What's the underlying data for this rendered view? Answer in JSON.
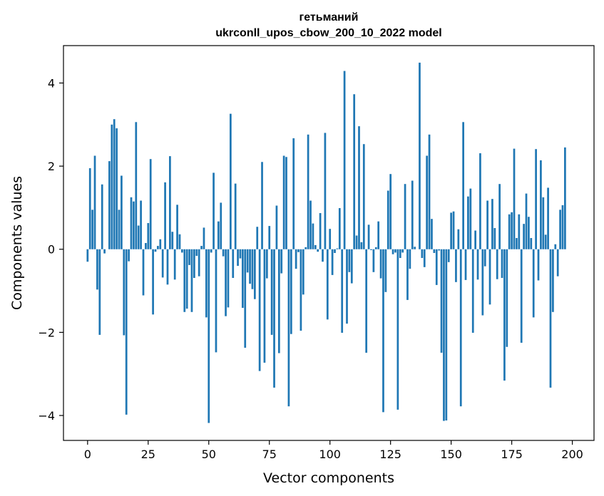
{
  "chart_data": {
    "type": "bar",
    "title": "гетьманий",
    "subtitle": "ukrconll_upos_cbow_200_10_2022 model",
    "xlabel": "Vector components",
    "ylabel": "Components values",
    "xlim": [
      -9.95,
      208.95
    ],
    "ylim": [
      -4.6,
      4.9
    ],
    "xticks": [
      0,
      25,
      50,
      75,
      100,
      125,
      150,
      175,
      200
    ],
    "yticks": [
      -4,
      -2,
      0,
      2,
      4
    ],
    "ytick_labels": [
      "−4",
      "−2",
      "0",
      "2",
      "4"
    ],
    "bar_color": "#1f77b4",
    "values": [
      -0.3,
      1.95,
      0.95,
      2.25,
      -0.97,
      -2.06,
      1.56,
      -0.1,
      0.0,
      2.12,
      3.0,
      3.13,
      2.91,
      0.95,
      1.77,
      -2.07,
      -3.98,
      -0.29,
      1.25,
      1.15,
      3.06,
      0.57,
      1.17,
      -1.11,
      0.15,
      0.63,
      2.17,
      -1.57,
      -0.06,
      0.08,
      0.24,
      -0.68,
      1.61,
      -0.85,
      2.24,
      0.42,
      -0.73,
      1.07,
      0.36,
      -0.08,
      -1.51,
      -1.43,
      -0.38,
      -1.51,
      -0.69,
      -0.16,
      -0.65,
      0.08,
      0.52,
      -1.64,
      -4.18,
      -0.08,
      1.84,
      -2.48,
      0.67,
      1.12,
      -0.17,
      -1.61,
      -1.4,
      3.26,
      -0.69,
      1.58,
      -0.4,
      -0.22,
      -1.41,
      -2.37,
      -0.56,
      -0.83,
      -0.96,
      -1.2,
      0.54,
      -2.93,
      2.1,
      -2.73,
      -0.7,
      0.56,
      -2.06,
      -3.33,
      1.05,
      -2.5,
      -0.58,
      2.25,
      2.22,
      -3.78,
      -2.04,
      2.67,
      -0.47,
      -0.07,
      -1.96,
      -1.09,
      0.05,
      2.76,
      1.17,
      0.62,
      0.1,
      -0.06,
      0.87,
      -0.3,
      2.8,
      -1.69,
      0.49,
      -0.62,
      -0.09,
      0.02,
      0.99,
      -2.01,
      4.29,
      -1.79,
      -0.55,
      -0.82,
      3.73,
      0.33,
      2.96,
      0.17,
      2.53,
      -2.49,
      0.59,
      -0.02,
      -0.55,
      0.05,
      0.67,
      -0.7,
      -3.92,
      -1.03,
      1.41,
      1.81,
      -0.12,
      -0.08,
      -3.86,
      -0.21,
      -0.08,
      1.57,
      -1.22,
      -0.47,
      1.65,
      0.06,
      0.0,
      4.49,
      -0.21,
      -0.43,
      2.25,
      2.76,
      0.73,
      -0.09,
      -0.86,
      -0.03,
      -2.49,
      -4.13,
      -4.12,
      -0.31,
      0.88,
      0.91,
      -0.79,
      0.48,
      -3.78,
      3.06,
      -0.74,
      1.27,
      1.46,
      -2.01,
      0.45,
      -0.73,
      2.31,
      -1.59,
      -0.41,
      1.17,
      -1.33,
      1.21,
      0.51,
      -0.72,
      1.57,
      -0.69,
      -3.16,
      -2.35,
      0.84,
      0.89,
      2.42,
      0.27,
      0.84,
      -2.25,
      0.61,
      1.34,
      0.78,
      0.27,
      -1.64,
      2.41,
      -0.75,
      2.14,
      1.25,
      0.35,
      1.48,
      -3.33,
      -1.51,
      0.12,
      -0.65,
      0.95,
      1.06,
      2.45
    ]
  }
}
